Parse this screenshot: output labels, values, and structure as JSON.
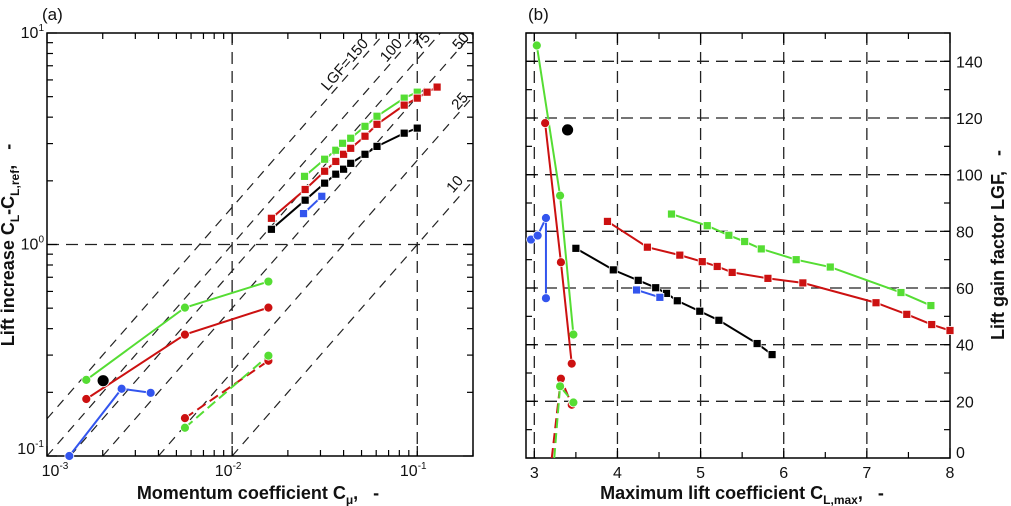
{
  "chart_data": [
    {
      "panel_label": "(a)",
      "type": "scatter",
      "scale": "log-log",
      "xlabel": {
        "text": "Momentum coefficient C",
        "sub": "μ",
        "suffix": ",   -"
      },
      "ylabel": {
        "text": "Lift increase C",
        "sub1": "L",
        "mid": "-C",
        "sub2": "L,ref",
        "suffix": ",   -"
      },
      "xlim": [
        0.001,
        0.2
      ],
      "ylim": [
        0.1,
        10
      ],
      "xticks": [
        {
          "value": 0.001,
          "base": "10",
          "exp": "-3"
        },
        {
          "value": 0.01,
          "base": "10",
          "exp": "-2"
        },
        {
          "value": 0.1,
          "base": "10",
          "exp": "-1"
        }
      ],
      "yticks": [
        {
          "value": 0.1,
          "base": "10",
          "exp": "-1"
        },
        {
          "value": 1,
          "base": "10",
          "exp": "0"
        },
        {
          "value": 10,
          "base": "10",
          "exp": "1"
        }
      ],
      "grid": "dashed at decades",
      "lgf_lines": [
        {
          "value": 150,
          "label": "LGF=150"
        },
        {
          "value": 100,
          "label": "100"
        },
        {
          "value": 75,
          "label": "75"
        },
        {
          "value": 50,
          "label": "50"
        },
        {
          "value": 25,
          "label": "25"
        },
        {
          "value": 10,
          "label": "10"
        }
      ],
      "series": [
        {
          "color": "#55dd33",
          "marker": "square",
          "line": "solid",
          "points": [
            [
              0.0246,
              2.1
            ],
            [
              0.0316,
              2.53
            ],
            [
              0.0363,
              2.79
            ],
            [
              0.0395,
              3.01
            ],
            [
              0.0437,
              3.18
            ],
            [
              0.0522,
              3.62
            ],
            [
              0.0606,
              4.04
            ],
            [
              0.085,
              4.92
            ],
            [
              0.1,
              5.25
            ]
          ]
        },
        {
          "color": "#cc1111",
          "marker": "square",
          "line": "solid",
          "points": [
            [
              0.0163,
              1.33
            ],
            [
              0.0248,
              1.82
            ],
            [
              0.0316,
              2.22
            ],
            [
              0.0363,
              2.47
            ],
            [
              0.04,
              2.67
            ],
            [
              0.0437,
              2.85
            ],
            [
              0.0522,
              3.25
            ],
            [
              0.0606,
              3.7
            ],
            [
              0.085,
              4.56
            ],
            [
              0.1,
              4.92
            ],
            [
              0.113,
              5.25
            ],
            [
              0.128,
              5.55
            ]
          ]
        },
        {
          "color": "#000000",
          "marker": "square",
          "line": "solid",
          "points": [
            [
              0.0163,
              1.18
            ],
            [
              0.0248,
              1.62
            ],
            [
              0.0316,
              1.95
            ],
            [
              0.0363,
              2.15
            ],
            [
              0.04,
              2.27
            ],
            [
              0.0437,
              2.42
            ],
            [
              0.0522,
              2.67
            ],
            [
              0.0606,
              2.91
            ],
            [
              0.085,
              3.36
            ],
            [
              0.1,
              3.55
            ]
          ]
        },
        {
          "color": "#3355ee",
          "marker": "square",
          "line": "solid",
          "points": [
            [
              0.0243,
              1.4
            ],
            [
              0.0305,
              1.69
            ]
          ]
        },
        {
          "color": "#55dd33",
          "marker": "circle",
          "line": "solid",
          "points": [
            [
              0.00163,
              0.229
            ],
            [
              0.00556,
              0.503
            ],
            [
              0.0157,
              0.668
            ]
          ]
        },
        {
          "color": "#cc1111",
          "marker": "circle",
          "line": "solid",
          "points": [
            [
              0.00163,
              0.186
            ],
            [
              0.00556,
              0.375
            ],
            [
              0.0157,
              0.503
            ]
          ]
        },
        {
          "color": "#3355ee",
          "marker": "circle",
          "line": "solid",
          "points": [
            [
              0.00132,
              0.1
            ],
            [
              0.00253,
              0.208
            ],
            [
              0.00363,
              0.199
            ]
          ]
        },
        {
          "color": "#000000",
          "marker": "big-circle",
          "line": "none",
          "points": [
            [
              0.00201,
              0.227
            ]
          ]
        },
        {
          "color": "#cc1111",
          "marker": "circle",
          "line": "dashed",
          "points": [
            [
              0.00556,
              0.151
            ],
            [
              0.0157,
              0.282
            ]
          ]
        },
        {
          "color": "#55dd33",
          "marker": "circle",
          "line": "dashed",
          "points": [
            [
              0.00556,
              0.136
            ],
            [
              0.0157,
              0.298
            ]
          ]
        }
      ]
    },
    {
      "panel_label": "(b)",
      "type": "scatter",
      "xlabel": {
        "text": "Maximum lift coefficient C",
        "sub": "L,max",
        "suffix": ",   -"
      },
      "ylabel": {
        "text": "Lift gain factor  LGF",
        "suffix": ",   -"
      },
      "xlim": [
        2.9,
        8
      ],
      "ylim": [
        0,
        150
      ],
      "xticks": [
        "3",
        "4",
        "5",
        "6",
        "7",
        "8"
      ],
      "yticks": [
        "0",
        "20",
        "40",
        "60",
        "80",
        "100",
        "120",
        "140"
      ],
      "y_axis_side": "right",
      "grid": "dashed",
      "series": [
        {
          "color": "#55dd33",
          "marker": "square",
          "line": "solid",
          "points": [
            [
              4.65,
              86.1
            ],
            [
              5.08,
              82.0
            ],
            [
              5.34,
              78.6
            ],
            [
              5.53,
              76.4
            ],
            [
              5.73,
              73.8
            ],
            [
              6.15,
              70.0
            ],
            [
              6.56,
              67.4
            ],
            [
              7.41,
              58.4
            ],
            [
              7.77,
              53.8
            ]
          ]
        },
        {
          "color": "#cc1111",
          "marker": "square",
          "line": "solid",
          "points": [
            [
              3.88,
              83.5
            ],
            [
              4.36,
              74.4
            ],
            [
              4.75,
              71.6
            ],
            [
              5.02,
              69.3
            ],
            [
              5.2,
              67.6
            ],
            [
              5.38,
              65.5
            ],
            [
              5.81,
              63.4
            ],
            [
              6.23,
              61.8
            ],
            [
              7.11,
              54.8
            ],
            [
              7.48,
              50.7
            ],
            [
              7.78,
              47.1
            ],
            [
              8.0,
              45.0
            ]
          ]
        },
        {
          "color": "#000000",
          "marker": "square",
          "line": "solid",
          "points": [
            [
              3.5,
              74.0
            ],
            [
              3.95,
              66.4
            ],
            [
              4.25,
              62.7
            ],
            [
              4.46,
              60.1
            ],
            [
              4.59,
              58.1
            ],
            [
              4.72,
              55.5
            ],
            [
              4.99,
              51.8
            ],
            [
              5.22,
              48.6
            ],
            [
              5.68,
              40.4
            ],
            [
              5.86,
              36.5
            ]
          ]
        },
        {
          "color": "#3355ee",
          "marker": "square",
          "line": "solid",
          "points": [
            [
              4.23,
              59.3
            ],
            [
              4.51,
              56.7
            ]
          ]
        },
        {
          "color": "#55dd33",
          "marker": "circle",
          "line": "solid",
          "points": [
            [
              3.03,
              145.6
            ],
            [
              3.31,
              92.6
            ],
            [
              3.47,
              43.6
            ]
          ]
        },
        {
          "color": "#cc1111",
          "marker": "circle",
          "line": "solid",
          "points": [
            [
              3.13,
              118.2
            ],
            [
              3.32,
              69.1
            ],
            [
              3.45,
              33.3
            ]
          ]
        },
        {
          "color": "#3355ee",
          "marker": "circle",
          "line": "solid",
          "points": [
            [
              2.96,
              77.1
            ],
            [
              3.04,
              78.5
            ],
            [
              3.14,
              84.7
            ],
            [
              3.14,
              56.4
            ]
          ]
        },
        {
          "color": "#000000",
          "marker": "big-circle",
          "line": "none",
          "points": [
            [
              3.4,
              115.8
            ]
          ]
        },
        {
          "color": "#cc1111",
          "marker": "circle",
          "line": "dashed",
          "points": [
            [
              3.21,
              0
            ],
            [
              3.32,
              28.0
            ],
            [
              3.45,
              18.8
            ]
          ]
        },
        {
          "color": "#55dd33",
          "marker": "circle",
          "line": "dashed",
          "points": [
            [
              3.24,
              0
            ],
            [
              3.31,
              25.3
            ],
            [
              3.47,
              19.6
            ]
          ]
        }
      ]
    }
  ]
}
